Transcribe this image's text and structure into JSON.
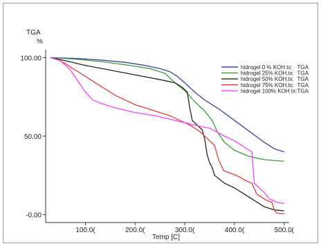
{
  "chart_data": {
    "type": "line",
    "title": "",
    "ylabel": "TGA",
    "yunit": "%",
    "xlabel": "Temp [C]",
    "xlim": [
      20,
      510
    ],
    "ylim": [
      -5,
      105
    ],
    "x_ticks": [
      100,
      200,
      300,
      400,
      500
    ],
    "x_tick_labels": [
      "100.0(",
      "200.0(",
      "300.0(",
      "400.0(",
      "500.0("
    ],
    "y_ticks": [
      100,
      50,
      0
    ],
    "y_tick_labels": [
      "100.00",
      "50.00",
      "-0.00"
    ],
    "legend_position": "top-right",
    "grid": false,
    "series": [
      {
        "name": "hidrogel 0 % KOH.tx:",
        "suffix": "TGA",
        "color": "#3a3fa6",
        "points": [
          [
            30,
            100
          ],
          [
            80,
            99.5
          ],
          [
            130,
            98.5
          ],
          [
            180,
            97
          ],
          [
            220,
            95
          ],
          [
            250,
            93
          ],
          [
            270,
            91
          ],
          [
            285,
            88
          ],
          [
            300,
            84
          ],
          [
            320,
            78
          ],
          [
            340,
            73
          ],
          [
            370,
            67
          ],
          [
            400,
            60
          ],
          [
            430,
            53
          ],
          [
            460,
            46
          ],
          [
            480,
            42
          ],
          [
            500,
            40
          ]
        ]
      },
      {
        "name": "hidrogel 25% KOH.tx:",
        "suffix": "TGA",
        "color": "#3c9a3c",
        "points": [
          [
            30,
            100
          ],
          [
            80,
            99
          ],
          [
            130,
            97.5
          ],
          [
            180,
            95.5
          ],
          [
            230,
            93
          ],
          [
            260,
            90
          ],
          [
            280,
            84
          ],
          [
            300,
            79
          ],
          [
            320,
            72
          ],
          [
            340,
            66
          ],
          [
            355,
            60
          ],
          [
            365,
            53
          ],
          [
            380,
            46
          ],
          [
            400,
            41
          ],
          [
            430,
            37
          ],
          [
            460,
            35
          ],
          [
            500,
            34
          ]
        ]
      },
      {
        "name": "hidrogel 50% KOH.tx:",
        "suffix": "TGA",
        "color": "#222222",
        "points": [
          [
            30,
            100
          ],
          [
            60,
            98
          ],
          [
            100,
            95
          ],
          [
            150,
            92
          ],
          [
            200,
            89
          ],
          [
            250,
            86
          ],
          [
            280,
            84
          ],
          [
            295,
            81
          ],
          [
            305,
            78
          ],
          [
            310,
            68
          ],
          [
            315,
            60
          ],
          [
            325,
            57
          ],
          [
            335,
            54
          ],
          [
            340,
            48
          ],
          [
            345,
            38
          ],
          [
            350,
            33
          ],
          [
            355,
            30
          ],
          [
            360,
            25
          ],
          [
            380,
            20
          ],
          [
            400,
            17
          ],
          [
            420,
            13
          ],
          [
            440,
            9
          ],
          [
            460,
            5
          ],
          [
            480,
            3
          ],
          [
            500,
            2.5
          ]
        ]
      },
      {
        "name": "hidrogel 75% KOH.tx:",
        "suffix": "TGA",
        "color": "#e83a3a",
        "points": [
          [
            30,
            100
          ],
          [
            50,
            98
          ],
          [
            80,
            92
          ],
          [
            100,
            88
          ],
          [
            130,
            82
          ],
          [
            160,
            76
          ],
          [
            200,
            70
          ],
          [
            240,
            66
          ],
          [
            270,
            63
          ],
          [
            290,
            60
          ],
          [
            310,
            57
          ],
          [
            330,
            53
          ],
          [
            340,
            50
          ],
          [
            350,
            47
          ],
          [
            360,
            44
          ],
          [
            368,
            35
          ],
          [
            378,
            28
          ],
          [
            395,
            26
          ],
          [
            410,
            24
          ],
          [
            420,
            22
          ],
          [
            435,
            20
          ],
          [
            445,
            13
          ],
          [
            455,
            11
          ],
          [
            465,
            9
          ],
          [
            475,
            8
          ],
          [
            480,
            3
          ],
          [
            485,
            1
          ],
          [
            500,
            0.5
          ]
        ]
      },
      {
        "name": "hidrogel 100% KOH.tx:",
        "suffix": "TGA",
        "color": "#ff3cff",
        "points": [
          [
            30,
            100
          ],
          [
            50,
            98
          ],
          [
            70,
            92
          ],
          [
            85,
            85
          ],
          [
            100,
            78
          ],
          [
            115,
            73
          ],
          [
            130,
            71
          ],
          [
            160,
            68
          ],
          [
            200,
            65
          ],
          [
            240,
            63
          ],
          [
            280,
            60
          ],
          [
            320,
            57
          ],
          [
            350,
            55
          ],
          [
            380,
            50
          ],
          [
            400,
            47
          ],
          [
            420,
            43
          ],
          [
            430,
            41
          ],
          [
            435,
            40
          ],
          [
            440,
            20
          ],
          [
            450,
            17
          ],
          [
            460,
            14
          ],
          [
            470,
            10
          ],
          [
            485,
            8
          ],
          [
            500,
            7
          ]
        ]
      }
    ]
  }
}
